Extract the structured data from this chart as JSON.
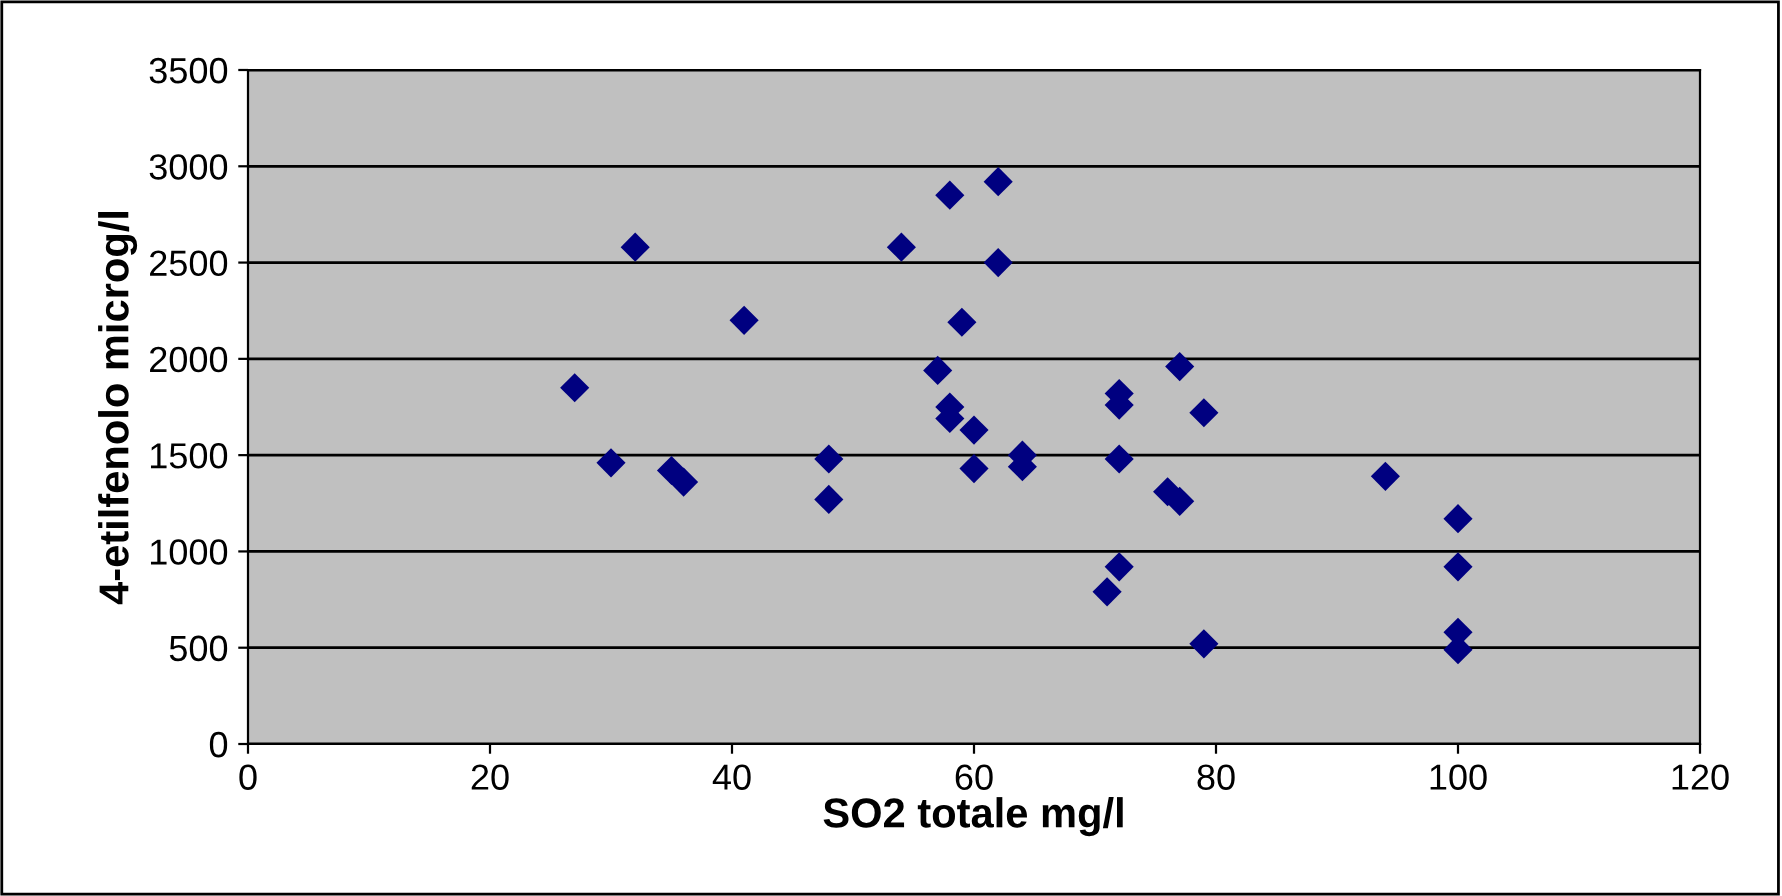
{
  "chart_data": {
    "type": "scatter",
    "xlabel": "SO2 totale mg/l",
    "ylabel": "4-etilfenolo microg/l",
    "x": [
      27,
      30,
      32,
      35,
      36,
      41,
      48,
      48,
      54,
      57,
      58,
      58,
      58,
      59,
      60,
      60,
      62,
      62,
      64,
      64,
      71,
      72,
      72,
      72,
      72,
      76,
      77,
      77,
      79,
      79,
      94,
      100,
      100,
      100,
      100
    ],
    "series": [
      {
        "color": "#000080",
        "values": [
          1850,
          1460,
          2580,
          1420,
          1360,
          2200,
          1480,
          1270,
          2580,
          1940,
          2850,
          1750,
          1690,
          2190,
          1630,
          1430,
          2920,
          2500,
          1500,
          1440,
          790,
          1820,
          1760,
          1480,
          920,
          1310,
          1260,
          1960,
          1720,
          520,
          1390,
          1170,
          920,
          580,
          490
        ]
      }
    ],
    "xlim": [
      0,
      120
    ],
    "xticks": [
      0,
      20,
      40,
      60,
      80,
      100,
      120
    ],
    "ylim": [
      0,
      3500
    ],
    "yticks": [
      0,
      500,
      1000,
      1500,
      2000,
      2500,
      3000,
      3500
    ],
    "grid": "y",
    "marker": "diamond",
    "legend": false
  }
}
